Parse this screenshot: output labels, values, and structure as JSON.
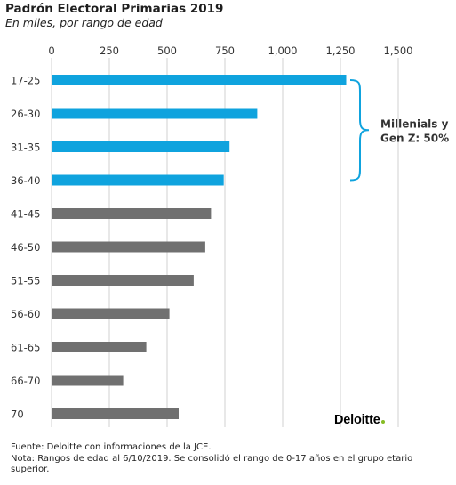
{
  "title": "Padrón Electoral Primarias 2019",
  "subtitle": "En miles, por rango de edad",
  "chart_data": {
    "type": "bar",
    "orientation": "horizontal",
    "x_ticks": [
      "0",
      "250",
      "500",
      "750",
      "1,000",
      "1,250",
      "1,500"
    ],
    "xlim": [
      0,
      1500
    ],
    "grid": true,
    "categories": [
      "17-25",
      "26-30",
      "31-35",
      "36-40",
      "41-45",
      "46-50",
      "51-55",
      "56-60",
      "61-65",
      "66-70",
      "70"
    ],
    "values": [
      1275,
      890,
      770,
      745,
      690,
      665,
      615,
      510,
      410,
      310,
      550
    ],
    "highlight_count": 4,
    "colors": {
      "highlight": "#0FA3DE",
      "default": "#707070",
      "grid": "#d0d0d0",
      "bracket": "#0FA3DE"
    },
    "annotation": {
      "line1": "Millenials y",
      "line2": "Gen Z: 50%"
    }
  },
  "logo": {
    "text": "Deloitte",
    "dot_color": "#86BC25"
  },
  "footer": {
    "source": "Fuente: Deloitte con informaciones de la JCE.",
    "note": "Nota: Rangos de edad al 6/10/2019. Se consolidó el rango de 0-17 años en el grupo etario superior."
  }
}
